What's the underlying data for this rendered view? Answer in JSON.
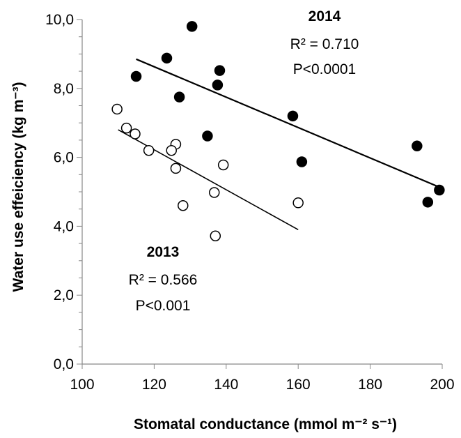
{
  "chart_data": {
    "type": "scatter",
    "xlabel": "Stomatal conductance (mmol m⁻² s⁻¹)",
    "ylabel": "Water use effeiciency (kg m⁻³)",
    "xlim": [
      100,
      200
    ],
    "ylim": [
      0,
      10
    ],
    "x_ticks": [
      "100",
      "120",
      "140",
      "160",
      "180",
      "200"
    ],
    "y_ticks": [
      "0,0",
      "2,0",
      "4,0",
      "6,0",
      "8,0",
      "10,0"
    ],
    "grid": false,
    "series": [
      {
        "name": "2014",
        "marker": "filled-circle",
        "color": "#000000",
        "points": [
          [
            130.5,
            9.8
          ],
          [
            123.5,
            8.88
          ],
          [
            115.0,
            8.35
          ],
          [
            138.2,
            8.52
          ],
          [
            137.6,
            8.1
          ],
          [
            127.0,
            7.75
          ],
          [
            158.5,
            7.2
          ],
          [
            134.8,
            6.62
          ],
          [
            161.0,
            5.87
          ],
          [
            193.0,
            6.33
          ],
          [
            199.2,
            5.05
          ],
          [
            196.0,
            4.7
          ]
        ],
        "trendline": {
          "x1": 115,
          "y1": 8.85,
          "x2": 200,
          "y2": 5.1
        },
        "annotation": {
          "label": "2014",
          "r2": "R² = 0.710",
          "p": "P<0.0001"
        }
      },
      {
        "name": "2013",
        "marker": "open-circle",
        "color": "#000000",
        "points": [
          [
            109.7,
            7.4
          ],
          [
            112.3,
            6.85
          ],
          [
            114.7,
            6.68
          ],
          [
            118.5,
            6.2
          ],
          [
            126.0,
            6.38
          ],
          [
            124.8,
            6.2
          ],
          [
            126.0,
            5.68
          ],
          [
            139.2,
            5.78
          ],
          [
            136.7,
            4.98
          ],
          [
            128.0,
            4.6
          ],
          [
            137.0,
            3.72
          ],
          [
            160.0,
            4.68
          ]
        ],
        "trendline": {
          "x1": 110,
          "y1": 6.8,
          "x2": 160,
          "y2": 3.9
        },
        "annotation": {
          "label": "2013",
          "r2": "R² = 0.566",
          "p": "P<0.001"
        }
      }
    ]
  }
}
